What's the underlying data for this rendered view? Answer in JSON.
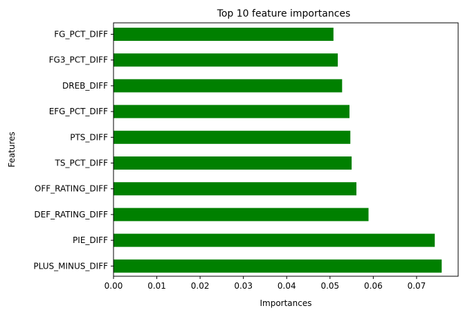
{
  "chart_data": {
    "type": "bar",
    "orientation": "horizontal",
    "title": "Top 10 feature importances",
    "xlabel": "Importances",
    "ylabel": "Features",
    "categories": [
      "FG_PCT_DIFF",
      "FG3_PCT_DIFF",
      "DREB_DIFF",
      "EFG_PCT_DIFF",
      "PTS_DIFF",
      "TS_PCT_DIFF",
      "OFF_RATING_DIFF",
      "DEF_RATING_DIFF",
      "PIE_DIFF",
      "PLUS_MINUS_DIFF"
    ],
    "values": [
      0.0508,
      0.0518,
      0.0528,
      0.0545,
      0.0547,
      0.055,
      0.0561,
      0.0589,
      0.0742,
      0.0758
    ],
    "xlim": [
      0,
      0.0796
    ],
    "xticks": [
      "0.00",
      "0.01",
      "0.02",
      "0.03",
      "0.04",
      "0.05",
      "0.06",
      "0.07"
    ],
    "bar_color": "#008000",
    "grid": false,
    "legend": "none"
  }
}
